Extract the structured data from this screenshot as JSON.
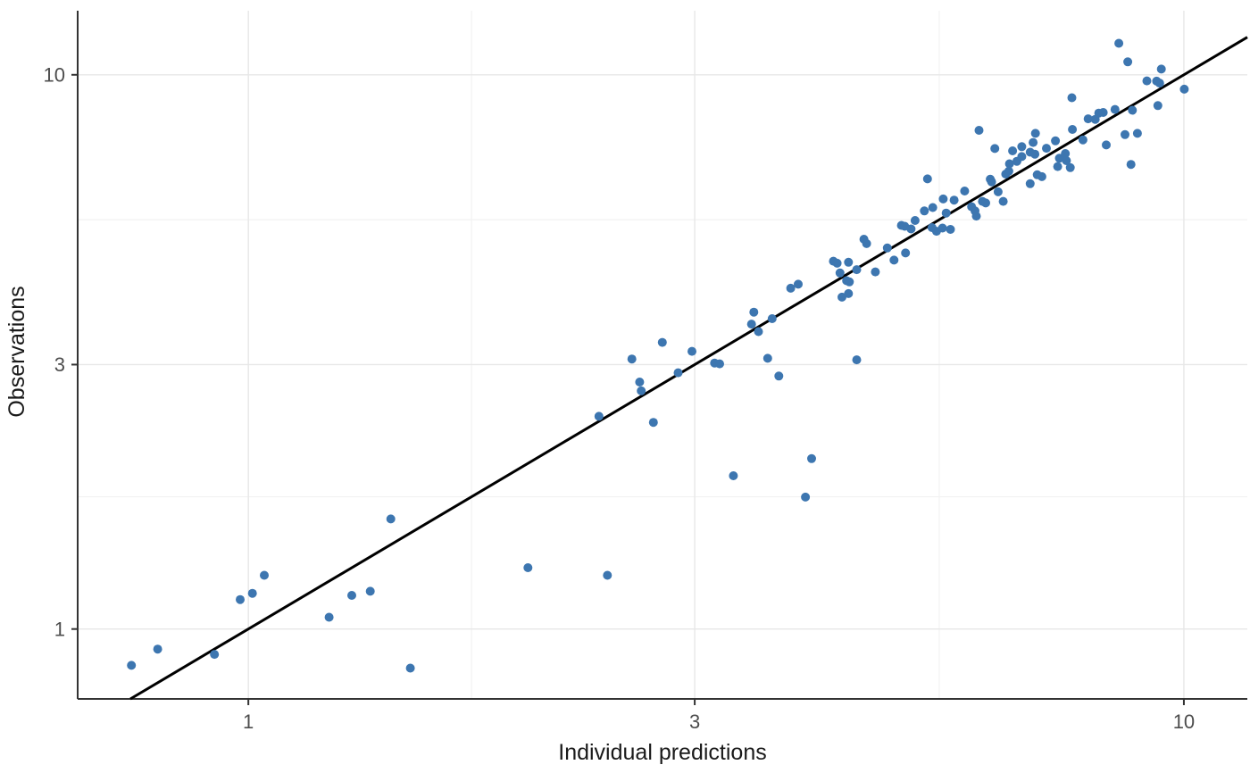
{
  "chart_data": {
    "type": "scatter",
    "title": "",
    "xlabel": "Individual predictions",
    "ylabel": "Observations",
    "x_scale": "log10",
    "y_scale": "log10",
    "xlim": [
      0.657,
      11.69
    ],
    "ylim": [
      0.748,
      13.05
    ],
    "x_ticks": [
      {
        "value": 1,
        "label": "1"
      },
      {
        "value": 3,
        "label": "3"
      },
      {
        "value": 10,
        "label": "10"
      }
    ],
    "y_ticks": [
      {
        "value": 1,
        "label": "1"
      },
      {
        "value": 3,
        "label": "3"
      },
      {
        "value": 10,
        "label": "10"
      }
    ],
    "x_minor_gridlines": [
      1.732,
      5.477
    ],
    "y_minor_gridlines": [
      1.732,
      5.477
    ],
    "grid": true,
    "legend": false,
    "reference_line": {
      "type": "identity",
      "description": "y = x",
      "color": "#000000",
      "width": 3
    },
    "point_style": {
      "color": "#3D76B0",
      "radius": 5
    },
    "colors": {
      "point": "#3D76B0",
      "line": "#000000",
      "grid_major": "#E7E7E7",
      "grid_minor": "#F2F2F2",
      "axis": "#333333",
      "tick_label": "#4d4d4d",
      "axis_title": "#1a1a1a",
      "background": "#ffffff"
    },
    "points": [
      [
        0.75,
        0.86
      ],
      [
        0.8,
        0.92
      ],
      [
        0.92,
        0.9
      ],
      [
        0.98,
        1.13
      ],
      [
        1.01,
        1.16
      ],
      [
        1.04,
        1.25
      ],
      [
        1.22,
        1.05
      ],
      [
        1.29,
        1.15
      ],
      [
        1.35,
        1.17
      ],
      [
        1.42,
        1.58
      ],
      [
        1.49,
        0.85
      ],
      [
        1.99,
        1.29
      ],
      [
        2.42,
        1.25
      ],
      [
        2.37,
        2.42
      ],
      [
        2.57,
        3.07
      ],
      [
        2.62,
        2.79
      ],
      [
        2.63,
        2.69
      ],
      [
        2.71,
        2.36
      ],
      [
        2.77,
        3.29
      ],
      [
        2.88,
        2.9
      ],
      [
        2.98,
        3.17
      ],
      [
        3.15,
        3.02
      ],
      [
        3.19,
        3.01
      ],
      [
        3.3,
        1.89
      ],
      [
        3.45,
        3.55
      ],
      [
        3.47,
        3.73
      ],
      [
        3.51,
        3.44
      ],
      [
        3.59,
        3.08
      ],
      [
        3.63,
        3.63
      ],
      [
        3.69,
        2.86
      ],
      [
        3.8,
        4.12
      ],
      [
        3.87,
        4.19
      ],
      [
        3.94,
        1.73
      ],
      [
        4.0,
        2.03
      ],
      [
        4.22,
        4.61
      ],
      [
        4.26,
        4.57
      ],
      [
        4.29,
        4.39
      ],
      [
        4.31,
        3.97
      ],
      [
        4.36,
        4.25
      ],
      [
        4.38,
        4.59
      ],
      [
        4.38,
        4.03
      ],
      [
        4.39,
        4.23
      ],
      [
        4.47,
        4.45
      ],
      [
        4.47,
        3.06
      ],
      [
        4.55,
        5.05
      ],
      [
        4.58,
        4.96
      ],
      [
        4.68,
        4.41
      ],
      [
        4.82,
        4.87
      ],
      [
        4.9,
        4.63
      ],
      [
        4.99,
        5.35
      ],
      [
        5.03,
        5.33
      ],
      [
        5.04,
        4.77
      ],
      [
        5.11,
        5.27
      ],
      [
        5.16,
        5.46
      ],
      [
        5.28,
        5.68
      ],
      [
        5.32,
        6.49
      ],
      [
        5.38,
        5.3
      ],
      [
        5.39,
        5.76
      ],
      [
        5.44,
        5.22
      ],
      [
        5.52,
        5.29
      ],
      [
        5.53,
        5.97
      ],
      [
        5.57,
        5.63
      ],
      [
        5.63,
        5.26
      ],
      [
        5.68,
        5.94
      ],
      [
        5.83,
        6.17
      ],
      [
        5.93,
        5.78
      ],
      [
        5.98,
        5.68
      ],
      [
        6.0,
        5.56
      ],
      [
        6.04,
        7.94
      ],
      [
        6.09,
        5.91
      ],
      [
        6.14,
        5.87
      ],
      [
        6.21,
        6.48
      ],
      [
        6.23,
        6.41
      ],
      [
        6.28,
        7.36
      ],
      [
        6.33,
        6.15
      ],
      [
        6.41,
        5.91
      ],
      [
        6.45,
        6.62
      ],
      [
        6.5,
        6.7
      ],
      [
        6.51,
        6.91
      ],
      [
        6.56,
        7.29
      ],
      [
        6.63,
        6.98
      ],
      [
        6.71,
        7.12
      ],
      [
        6.71,
        7.42
      ],
      [
        6.85,
        7.25
      ],
      [
        6.85,
        6.36
      ],
      [
        6.9,
        7.55
      ],
      [
        6.93,
        7.19
      ],
      [
        6.94,
        7.84
      ],
      [
        6.97,
        6.6
      ],
      [
        7.05,
        6.55
      ],
      [
        7.13,
        7.37
      ],
      [
        7.29,
        7.6
      ],
      [
        7.33,
        6.83
      ],
      [
        7.36,
        7.07
      ],
      [
        7.47,
        7.21
      ],
      [
        7.49,
        7.0
      ],
      [
        7.56,
        6.8
      ],
      [
        7.59,
        9.09
      ],
      [
        7.6,
        7.97
      ],
      [
        7.8,
        7.63
      ],
      [
        7.9,
        8.33
      ],
      [
        8.04,
        8.31
      ],
      [
        8.11,
        8.53
      ],
      [
        8.2,
        8.55
      ],
      [
        8.26,
        7.47
      ],
      [
        8.44,
        8.66
      ],
      [
        8.52,
        11.4
      ],
      [
        8.65,
        7.8
      ],
      [
        8.71,
        10.55
      ],
      [
        8.78,
        6.89
      ],
      [
        8.81,
        8.63
      ],
      [
        8.92,
        7.84
      ],
      [
        9.13,
        9.75
      ],
      [
        9.35,
        9.74
      ],
      [
        9.42,
        9.66
      ],
      [
        9.46,
        10.24
      ],
      [
        9.38,
        8.8
      ],
      [
        10.01,
        9.42
      ]
    ]
  }
}
